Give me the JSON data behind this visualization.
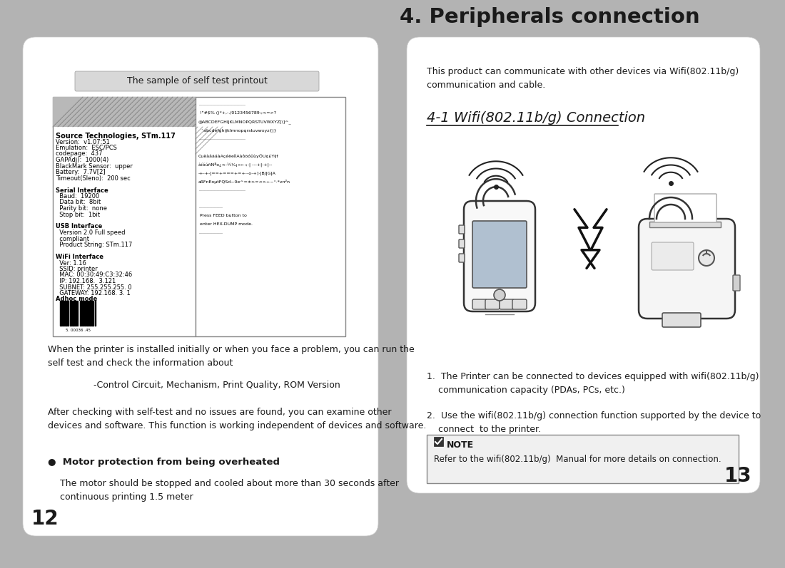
{
  "bg_color": "#b3b3b3",
  "page_bg": "#ffffff",
  "title_right": "4. Peripherals connection",
  "section_title": "4-1 Wifi(802.11b/g) Connection",
  "intro_text": "This product can communicate with other devices via Wifi(802.11b/g)\ncommunication and cable.",
  "printout_label": "The sample of self test printout",
  "left_body_text1": "When the printer is installed initially or when you face a problem, you can run the\nself test and check the information about",
  "left_body_text2": "                -Control Circuit, Mechanism, Print Quality, ROM Version",
  "left_body_text3": "After checking with self-test and no issues are found, you can examine other\ndevices and software. This function is working independent of devices and software.",
  "bullet_title": "●  Motor protection from being overheated",
  "bullet_body": "The motor should be stopped and cooled about more than 30 seconds after\ncontinuous printing 1.5 meter",
  "note_title": "NOTE",
  "note_body": "Refer to the wifi(802.11b/g)  Manual for more details on connection.",
  "list_item1": "1.  The Printer can be connected to devices equipped with wifi(802.11b/g)\n    communication capacity (PDAs, PCs, etc.)",
  "list_item2": "2.  Use the wifi(802.11b/g) connection function supported by the device to\n    connect  to the printer.",
  "page_num_left": "12",
  "page_num_right": "13",
  "printout_text_left": [
    [
      "Source Technologies, STm.117",
      "bold",
      7
    ],
    [
      "Version:  v1.07:51",
      "normal",
      6
    ],
    [
      "Emulation:  ESC/PCS",
      "normal",
      6
    ],
    [
      "codepage:  437",
      "normal",
      6
    ],
    [
      "GAPAdj):  1000(4)",
      "normal",
      6
    ],
    [
      "BlackMark Sensor:  upper",
      "normal",
      6
    ],
    [
      "Battery:  7.7V[2]",
      "normal",
      6
    ],
    [
      "Timeout(Sleno):  200 sec",
      "normal",
      6
    ],
    [
      "",
      "normal",
      6
    ],
    [
      "Serial Interface",
      "bold",
      6
    ],
    [
      "  Baud:  19200",
      "normal",
      6
    ],
    [
      "  Data bit:  8bit",
      "normal",
      6
    ],
    [
      "  Parity bit:  none",
      "normal",
      6
    ],
    [
      "  Stop bit:  1bit",
      "normal",
      6
    ],
    [
      "",
      "normal",
      6
    ],
    [
      "USB Interface",
      "bold",
      6
    ],
    [
      "  Version 2.0 Full speed",
      "normal",
      6
    ],
    [
      "  compliant",
      "normal",
      6
    ],
    [
      "  Product String: STm.117",
      "normal",
      6
    ],
    [
      "",
      "normal",
      6
    ],
    [
      "WiFi Interface",
      "bold",
      6
    ],
    [
      "  Ver: 1.16",
      "normal",
      6
    ],
    [
      "  SSID: printer",
      "normal",
      6
    ],
    [
      "  MAC: 00:30:49:C3:32:46",
      "normal",
      6
    ],
    [
      "  IP: 192.168.  3.121",
      "normal",
      6
    ],
    [
      "  SUBNET: 255.255.255. 0",
      "normal",
      6
    ],
    [
      "  GATEWAY: 192.168. 3. 1",
      "normal",
      6
    ],
    [
      "Adhoc mode",
      "bold",
      6
    ]
  ]
}
